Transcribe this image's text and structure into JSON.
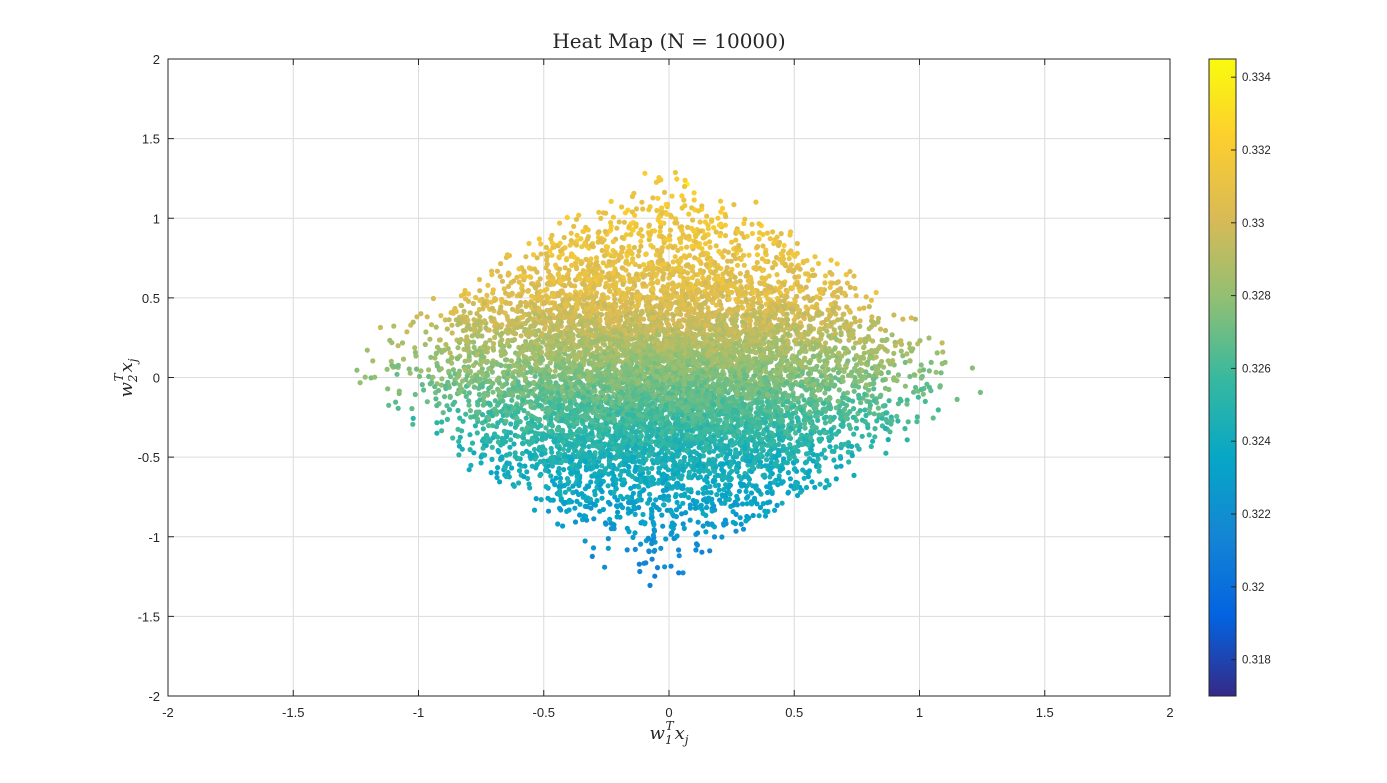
{
  "chart_data": {
    "type": "scatter",
    "title": "Heat Map (N = 10000)",
    "xlabel_base": "w",
    "xlabel_sub": "1",
    "xlabel_sup": "T",
    "xlabel_var": "x",
    "xlabel_var_sub": "j",
    "ylabel_base": "w",
    "ylabel_sub": "2",
    "ylabel_sup": "T",
    "ylabel_var": "x",
    "ylabel_var_sub": "j",
    "xlim": [
      -2,
      2
    ],
    "ylim": [
      -2,
      2
    ],
    "xticks": [
      -2,
      -1.5,
      -1,
      -0.5,
      0,
      0.5,
      1,
      1.5,
      2
    ],
    "xtick_labels": [
      "-2",
      "-1.5",
      "-1",
      "-0.5",
      "0",
      "0.5",
      "1",
      "1.5",
      "2"
    ],
    "yticks": [
      -2,
      -1.5,
      -1,
      -0.5,
      0,
      0.5,
      1,
      1.5,
      2
    ],
    "ytick_labels": [
      "-2",
      "-1.5",
      "-1",
      "-0.5",
      "0",
      "0.5",
      "1",
      "1.5",
      "2"
    ],
    "grid": true,
    "colormap": "parula",
    "colorbar": {
      "range": [
        0.317,
        0.3345
      ],
      "ticks": [
        0.318,
        0.32,
        0.322,
        0.324,
        0.326,
        0.328,
        0.33,
        0.332,
        0.334
      ],
      "tick_labels": [
        "0.318",
        "0.32",
        "0.322",
        "0.324",
        "0.326",
        "0.328",
        "0.33",
        "0.332",
        "0.334"
      ],
      "placement": "right"
    },
    "point_count": 10000,
    "region_vertices": [
      {
        "x": -1.4,
        "y": 0.11
      },
      {
        "x": 0.1,
        "y": 1.37
      },
      {
        "x": 1.37,
        "y": -0.06
      },
      {
        "x": -0.1,
        "y": -1.4
      }
    ],
    "color_by_y": [
      {
        "y": -1.4,
        "value": 0.3205
      },
      {
        "y": -1.0,
        "value": 0.3225
      },
      {
        "y": -0.5,
        "value": 0.3245
      },
      {
        "y": 0.0,
        "value": 0.3275
      },
      {
        "y": 0.5,
        "value": 0.3305
      },
      {
        "y": 1.0,
        "value": 0.3315
      },
      {
        "y": 1.37,
        "value": 0.3318
      }
    ],
    "highlight_band": {
      "y": 1.2,
      "value": 0.334
    }
  }
}
